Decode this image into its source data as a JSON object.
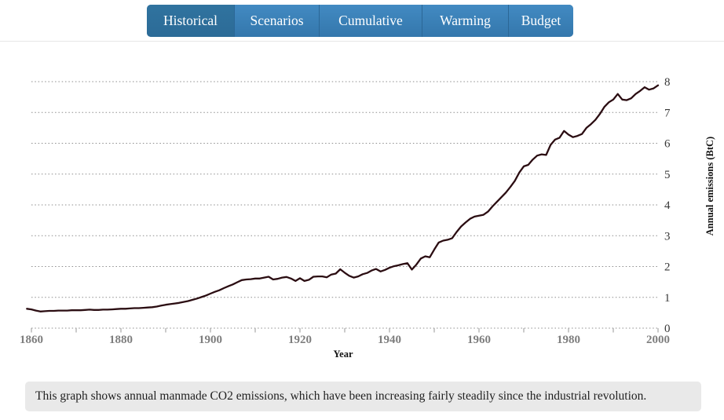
{
  "tabs": {
    "items": [
      {
        "label": "Historical",
        "active": true
      },
      {
        "label": "Scenarios",
        "active": false
      },
      {
        "label": "Cumulative",
        "active": false
      },
      {
        "label": "Warming",
        "active": false
      },
      {
        "label": "Budget",
        "active": false
      }
    ]
  },
  "chart_data": {
    "type": "line",
    "title": "",
    "xlabel": "Year",
    "ylabel": "Annual emissions (BtC)",
    "xlim": [
      1860,
      2000
    ],
    "ylim": [
      0,
      8
    ],
    "grid": "horizontal dotted gridlines at each integer; dotted baseline x-axis",
    "legend_position": "none",
    "x_tick_labels": [
      1860,
      1880,
      1900,
      1920,
      1940,
      1960,
      1980,
      2000
    ],
    "x_minor_tick_interval": 10,
    "y_ticks": [
      0,
      1,
      2,
      3,
      4,
      5,
      6,
      7,
      8
    ],
    "series": [
      {
        "name": "Annual manmade CO2 emissions (BtC)",
        "x": [
          1859,
          1860,
          1861,
          1862,
          1863,
          1864,
          1865,
          1866,
          1867,
          1868,
          1869,
          1870,
          1871,
          1872,
          1873,
          1874,
          1875,
          1876,
          1877,
          1878,
          1879,
          1880,
          1881,
          1882,
          1883,
          1884,
          1885,
          1886,
          1887,
          1888,
          1889,
          1890,
          1891,
          1892,
          1893,
          1894,
          1895,
          1896,
          1897,
          1898,
          1899,
          1900,
          1901,
          1902,
          1903,
          1904,
          1905,
          1906,
          1907,
          1908,
          1909,
          1910,
          1911,
          1912,
          1913,
          1914,
          1915,
          1916,
          1917,
          1918,
          1919,
          1920,
          1921,
          1922,
          1923,
          1924,
          1925,
          1926,
          1927,
          1928,
          1929,
          1930,
          1931,
          1932,
          1933,
          1934,
          1935,
          1936,
          1937,
          1938,
          1939,
          1940,
          1941,
          1942,
          1943,
          1944,
          1945,
          1946,
          1947,
          1948,
          1949,
          1950,
          1951,
          1952,
          1953,
          1954,
          1955,
          1956,
          1957,
          1958,
          1959,
          1960,
          1961,
          1962,
          1963,
          1964,
          1965,
          1966,
          1967,
          1968,
          1969,
          1970,
          1971,
          1972,
          1973,
          1974,
          1975,
          1976,
          1977,
          1978,
          1979,
          1980,
          1981,
          1982,
          1983,
          1984,
          1985,
          1986,
          1987,
          1988,
          1989,
          1990,
          1991,
          1992,
          1993,
          1994,
          1995,
          1996,
          1997,
          1998,
          1999,
          2000
        ],
        "y": [
          0.63,
          0.61,
          0.57,
          0.54,
          0.55,
          0.56,
          0.56,
          0.57,
          0.57,
          0.57,
          0.58,
          0.58,
          0.58,
          0.59,
          0.6,
          0.59,
          0.59,
          0.6,
          0.6,
          0.61,
          0.62,
          0.63,
          0.63,
          0.64,
          0.65,
          0.65,
          0.66,
          0.67,
          0.68,
          0.7,
          0.73,
          0.76,
          0.78,
          0.8,
          0.82,
          0.85,
          0.88,
          0.92,
          0.96,
          1.01,
          1.06,
          1.12,
          1.18,
          1.23,
          1.3,
          1.36,
          1.42,
          1.49,
          1.56,
          1.58,
          1.59,
          1.61,
          1.61,
          1.64,
          1.67,
          1.58,
          1.6,
          1.64,
          1.66,
          1.61,
          1.53,
          1.62,
          1.53,
          1.57,
          1.67,
          1.68,
          1.68,
          1.65,
          1.74,
          1.77,
          1.91,
          1.8,
          1.7,
          1.64,
          1.68,
          1.75,
          1.79,
          1.87,
          1.92,
          1.84,
          1.89,
          1.96,
          2.01,
          2.04,
          2.08,
          2.11,
          1.9,
          2.06,
          2.26,
          2.33,
          2.3,
          2.55,
          2.78,
          2.84,
          2.87,
          2.92,
          3.12,
          3.3,
          3.43,
          3.55,
          3.62,
          3.65,
          3.68,
          3.78,
          3.95,
          4.1,
          4.25,
          4.4,
          4.58,
          4.78,
          5.05,
          5.25,
          5.3,
          5.47,
          5.6,
          5.64,
          5.62,
          5.95,
          6.12,
          6.18,
          6.4,
          6.28,
          6.2,
          6.24,
          6.3,
          6.5,
          6.62,
          6.76,
          6.95,
          7.18,
          7.33,
          7.42,
          7.6,
          7.42,
          7.4,
          7.46,
          7.6,
          7.7,
          7.82,
          7.74,
          7.78,
          7.88
        ]
      }
    ]
  },
  "caption": {
    "text": "This graph shows annual manmade CO2 emissions, which have been increasing fairly steadily since the industrial revolution."
  },
  "colors": {
    "line": "#2b0d12",
    "tab_active": "#2e709e",
    "tab_inactive": "#3c82b9",
    "tab_border": "#2b6796",
    "grid": "#8d8d8d",
    "x_tick_label": "#7e7e7e",
    "y_tick_label": "#383838",
    "caption_bg": "#e9e9e9"
  }
}
